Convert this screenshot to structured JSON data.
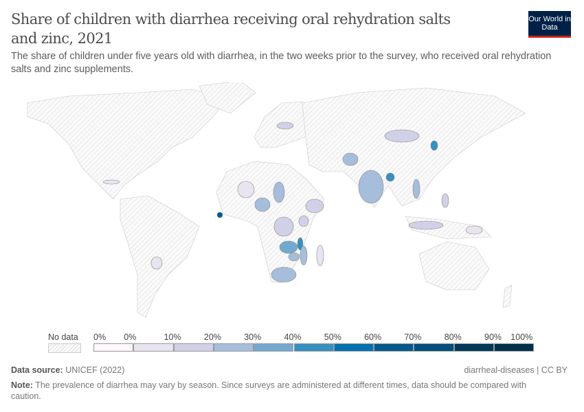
{
  "header": {
    "title": "Share of children with diarrhea receiving oral rehydration salts and zinc, 2021",
    "subtitle": "The share of children under five years old with diarrhea, in the two weeks prior to the survey, who received oral rehydration salts and zinc supplements.",
    "logo": "Our World in Data"
  },
  "legend": {
    "no_data_label": "No data",
    "bin_labels": [
      "0%",
      "0%",
      "10%",
      "20%",
      "30%",
      "40%",
      "50%",
      "60%",
      "70%",
      "80%",
      "90%",
      "100%"
    ],
    "colors": [
      "#fdf7fb",
      "#e8e4f0",
      "#d0d1e6",
      "#a6bddb",
      "#74a9cf",
      "#3690c0",
      "#0570b0",
      "#045a8d",
      "#034e7b",
      "#023858",
      "#01304b"
    ]
  },
  "chart_data": {
    "type": "choropleth",
    "title": "Share of children with diarrhea receiving oral rehydration salts and zinc, 2021",
    "unit": "%",
    "scale": [
      0,
      100
    ],
    "no_data_pattern": "gray-hatch",
    "values_estimated": [
      {
        "country": "Sierra Leone",
        "value": 65
      },
      {
        "country": "North Korea",
        "value": 48
      },
      {
        "country": "Bangladesh",
        "value": 42
      },
      {
        "country": "Malawi",
        "value": 43
      },
      {
        "country": "Zambia",
        "value": 38
      },
      {
        "country": "Zimbabwe",
        "value": 28
      },
      {
        "country": "South Africa",
        "value": 27
      },
      {
        "country": "Nigeria",
        "value": 27
      },
      {
        "country": "India",
        "value": 24
      },
      {
        "country": "Afghanistan",
        "value": 25
      },
      {
        "country": "Vietnam",
        "value": 24
      },
      {
        "country": "Mozambique",
        "value": 22
      },
      {
        "country": "Chad",
        "value": 22
      },
      {
        "country": "Kenya",
        "value": 18
      },
      {
        "country": "Mongolia",
        "value": 15
      },
      {
        "country": "Ethiopia",
        "value": 14
      },
      {
        "country": "DR Congo",
        "value": 14
      },
      {
        "country": "Indonesia",
        "value": 14
      },
      {
        "country": "Philippines",
        "value": 12
      },
      {
        "country": "Ukraine",
        "value": 12
      },
      {
        "country": "Mali",
        "value": 8
      },
      {
        "country": "Papua New Guinea",
        "value": 8
      },
      {
        "country": "Cuba",
        "value": 8
      },
      {
        "country": "Bolivia",
        "value": 8
      },
      {
        "country": "Madagascar",
        "value": 5
      }
    ]
  },
  "footer": {
    "source_label": "Data source:",
    "source": "UNICEF (2022)",
    "slug": "diarrheal-diseases | CC BY",
    "note_label": "Note:",
    "note": "The prevalence of diarrhea may vary by season. Since surveys are administered at different times, data should be compared with caution."
  }
}
